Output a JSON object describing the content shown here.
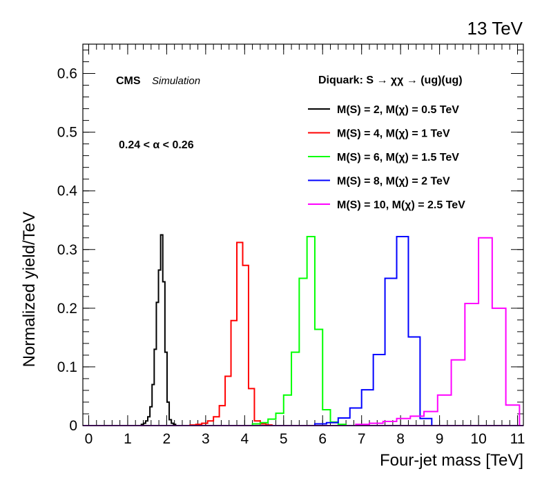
{
  "energy_label": "13 TeV",
  "experiment_label": "CMS",
  "simulation_label": "Simulation",
  "process_label": "Diquark: S → χχ → (ug)(ug)",
  "alpha_label": "0.24 <  α < 0.26",
  "chart_data": {
    "type": "line",
    "style": "step histogram",
    "xlabel": "Four-jet mass [TeV]",
    "ylabel": "Normalized yield/TeV",
    "xlim": [
      -0.15,
      11.15
    ],
    "ylim": [
      0,
      0.65
    ],
    "x_ticks": [
      0,
      1,
      2,
      3,
      4,
      5,
      6,
      7,
      8,
      9,
      10,
      11
    ],
    "y_ticks": [
      0,
      0.1,
      0.2,
      0.3,
      0.4,
      0.5,
      0.6
    ],
    "grid": false,
    "legend_position": "top-right",
    "series": [
      {
        "name": "M(S) = 2, M(χ) = 0.5 TeV",
        "color": "#000000",
        "bin_width": 0.055,
        "x": [
          1.35,
          1.405,
          1.46,
          1.515,
          1.57,
          1.625,
          1.68,
          1.735,
          1.79,
          1.845,
          1.9,
          1.955,
          2.01,
          2.065,
          2.12,
          2.175
        ],
        "values": [
          0.002,
          0.004,
          0.008,
          0.015,
          0.032,
          0.07,
          0.13,
          0.21,
          0.265,
          0.325,
          0.245,
          0.125,
          0.04,
          0.01,
          0.004,
          0.002
        ]
      },
      {
        "name": "M(S) = 4, M(χ) = 1 TeV",
        "color": "#ff0000",
        "bin_width": 0.15,
        "x": [
          2.6,
          2.75,
          2.9,
          3.05,
          3.2,
          3.35,
          3.5,
          3.65,
          3.8,
          3.95,
          4.1,
          4.25,
          4.4,
          4.55
        ],
        "values": [
          0.001,
          0.002,
          0.004,
          0.008,
          0.015,
          0.034,
          0.084,
          0.179,
          0.312,
          0.273,
          0.063,
          0.008,
          0.003,
          0.001
        ]
      },
      {
        "name": "M(S) = 6, M(χ) = 1.5 TeV",
        "color": "#00ff00",
        "bin_width": 0.2,
        "x": [
          4.2,
          4.4,
          4.6,
          4.8,
          5.0,
          5.2,
          5.4,
          5.6,
          5.8,
          6.0,
          6.2,
          6.4
        ],
        "values": [
          0.003,
          0.005,
          0.011,
          0.021,
          0.052,
          0.125,
          0.251,
          0.322,
          0.164,
          0.027,
          0.006,
          0.002
        ]
      },
      {
        "name": "M(S) = 8, M(χ) = 2 TeV",
        "color": "#0000ff",
        "bin_width": 0.3,
        "x": [
          5.8,
          6.1,
          6.4,
          6.7,
          7.0,
          7.3,
          7.6,
          7.9,
          8.2,
          8.5
        ],
        "values": [
          0.003,
          0.005,
          0.013,
          0.03,
          0.061,
          0.121,
          0.251,
          0.322,
          0.151,
          0.012
        ]
      },
      {
        "name": "M(S) = 10, M(χ) = 2.5 TeV",
        "color": "#ff00ff",
        "bin_width": 0.35,
        "x": [
          6.85,
          7.2,
          7.55,
          7.9,
          8.25,
          8.6,
          8.95,
          9.3,
          9.65,
          10.0,
          10.35,
          10.7
        ],
        "values": [
          0.002,
          0.004,
          0.007,
          0.012,
          0.016,
          0.024,
          0.052,
          0.112,
          0.208,
          0.32,
          0.2,
          0.035
        ]
      }
    ]
  }
}
